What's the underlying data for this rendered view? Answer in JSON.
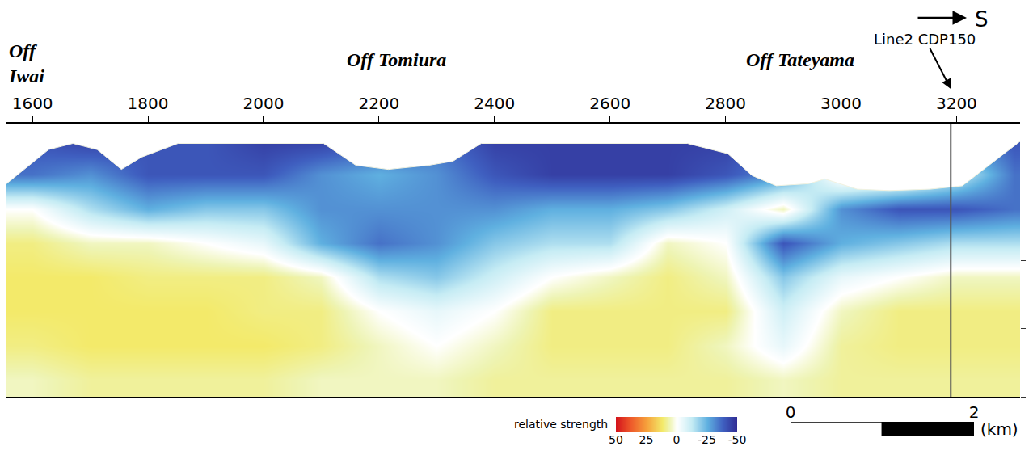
{
  "chart_data": {
    "type": "heatmap",
    "region_labels": [
      "Off Iwai",
      "Off Tomiura",
      "Off Tateyama"
    ],
    "direction_label": "S",
    "x": [
      1600,
      1700,
      1800,
      1900,
      2000,
      2100,
      2200,
      2300,
      2400,
      2500,
      2600,
      2700,
      2800,
      2900,
      3000,
      3100,
      3200,
      3300
    ],
    "y": [
      0.25,
      0.75,
      1.25,
      1.75,
      2.25,
      2.75,
      3.25,
      3.75
    ],
    "z": [
      [
        -40,
        -45,
        -40,
        -40,
        -45,
        -45,
        -40,
        -35,
        -45,
        -45,
        -45,
        -45,
        -45,
        -35,
        -20,
        -20,
        -30,
        -40
      ],
      [
        -35,
        -30,
        -40,
        -40,
        -40,
        -30,
        -25,
        -30,
        -40,
        -45,
        -45,
        -45,
        -40,
        -30,
        5,
        5,
        -10,
        -35
      ],
      [
        0,
        -15,
        -25,
        -20,
        -20,
        -30,
        -30,
        -30,
        -30,
        -25,
        -25,
        -20,
        -10,
        5,
        -30,
        -40,
        -40,
        -35
      ],
      [
        10,
        5,
        5,
        0,
        -5,
        -25,
        -35,
        -30,
        -20,
        -15,
        -15,
        5,
        0,
        -40,
        -25,
        -20,
        -15,
        -15
      ],
      [
        12,
        12,
        10,
        10,
        10,
        5,
        -15,
        -20,
        -10,
        0,
        5,
        10,
        5,
        -20,
        -5,
        0,
        5,
        5
      ],
      [
        12,
        12,
        12,
        12,
        10,
        10,
        0,
        -5,
        0,
        10,
        10,
        10,
        10,
        -10,
        5,
        10,
        10,
        10
      ],
      [
        10,
        12,
        12,
        12,
        12,
        10,
        5,
        0,
        5,
        10,
        10,
        10,
        5,
        -5,
        8,
        10,
        10,
        10
      ],
      [
        5,
        8,
        8,
        8,
        8,
        5,
        5,
        5,
        8,
        8,
        8,
        8,
        8,
        5,
        8,
        8,
        8,
        8
      ]
    ],
    "xlim": [
      1555,
      3310
    ],
    "xticks": [
      1600,
      1800,
      2000,
      2200,
      2400,
      2600,
      2800,
      3000,
      3200
    ],
    "ylim": [
      4,
      0
    ],
    "yticks": [
      0,
      1,
      2,
      3,
      4
    ],
    "grid": true,
    "tick_labels": "x",
    "seafloor": {
      "x": [
        1555,
        1628,
        1670,
        1712,
        1754,
        1789,
        1852,
        2104,
        2160,
        2216,
        2286,
        2328,
        2377,
        2734,
        2804,
        2846,
        2888,
        2944,
        2972,
        3028,
        3084,
        3154,
        3210,
        3266,
        3310
      ],
      "y": [
        0.88,
        0.38,
        0.29,
        0.38,
        0.67,
        0.49,
        0.29,
        0.29,
        0.61,
        0.67,
        0.61,
        0.55,
        0.29,
        0.29,
        0.44,
        0.76,
        0.91,
        0.88,
        0.81,
        0.96,
        0.98,
        0.96,
        0.91,
        0.55,
        0.26
      ]
    },
    "reference_line": {
      "x": 3190,
      "label": "Line2 CDP150"
    },
    "colorbar": {
      "label": "relative strength",
      "range": [
        50,
        -50
      ],
      "ticks": [
        50,
        25,
        0,
        -25,
        -50
      ]
    },
    "scale_bar": {
      "range": [
        0,
        2
      ],
      "ticks": [
        0,
        2
      ],
      "segments": [
        [
          0,
          1
        ],
        [
          1,
          2
        ]
      ],
      "unit": "(km)"
    }
  }
}
